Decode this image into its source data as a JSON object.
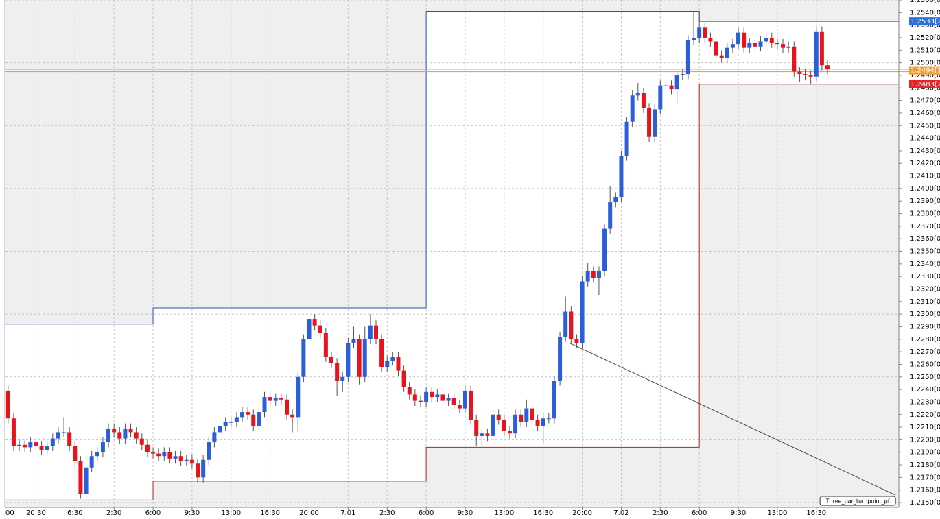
{
  "chart_data": {
    "type": "candlestick",
    "x": [
      2,
      3,
      4,
      5,
      6,
      7,
      8,
      9,
      10,
      11,
      12,
      13,
      14,
      15,
      16,
      17,
      18,
      19,
      20,
      21,
      22,
      23,
      24,
      25,
      26,
      27,
      28,
      29,
      30,
      31,
      32,
      33,
      34,
      35,
      36,
      37,
      38,
      39,
      40,
      41,
      42,
      43,
      44,
      45,
      46,
      47,
      48,
      49,
      50,
      51,
      52,
      53,
      54,
      55,
      56,
      57,
      58,
      59,
      60,
      61,
      62,
      63,
      64,
      65,
      66,
      67,
      68,
      69,
      70,
      71,
      72,
      73,
      74,
      75,
      76,
      77,
      78,
      79,
      80,
      81,
      82,
      83,
      84,
      85,
      86,
      87,
      88,
      89,
      90,
      91,
      92,
      93,
      94,
      95,
      96,
      97,
      98,
      99,
      100,
      101,
      102,
      103,
      104,
      105,
      106,
      107,
      108,
      109,
      110,
      111,
      112,
      113,
      114,
      115,
      116,
      117,
      118,
      119,
      120,
      121,
      122,
      123,
      124,
      125,
      126,
      127,
      128,
      129,
      130,
      131,
      132,
      133,
      134,
      135,
      136,
      137,
      138,
      139,
      140,
      141,
      142,
      143,
      144,
      145,
      146,
      147,
      148,
      149
    ],
    "open": [
      1.2239,
      1.2217,
      1.2195,
      1.2196,
      1.2194,
      1.2198,
      1.2195,
      1.2192,
      1.2195,
      1.2201,
      1.2206,
      1.2206,
      1.2195,
      1.2183,
      1.2157,
      1.2178,
      1.2187,
      1.219,
      1.2198,
      1.2209,
      1.2206,
      1.2201,
      1.2209,
      1.2206,
      1.2201,
      1.2196,
      1.219,
      1.2189,
      1.2187,
      1.219,
      1.2185,
      1.2187,
      1.2183,
      1.2184,
      1.2181,
      1.217,
      1.2184,
      1.2198,
      1.2206,
      1.2211,
      1.2214,
      1.2214,
      1.2218,
      1.2222,
      1.222,
      1.2211,
      1.2222,
      1.2234,
      1.2231,
      1.2233,
      1.2232,
      1.222,
      1.2218,
      1.225,
      1.228,
      1.2296,
      1.2291,
      1.2285,
      1.2266,
      1.2261,
      1.2247,
      1.225,
      1.2277,
      1.228,
      1.225,
      1.228,
      1.2291,
      1.228,
      1.2258,
      1.2263,
      1.2266,
      1.2255,
      1.2242,
      1.2236,
      1.2231,
      1.223,
      1.2238,
      1.2234,
      1.2236,
      1.2231,
      1.2233,
      1.2228,
      1.2225,
      1.2239,
      1.2216,
      1.2203,
      1.2205,
      1.2203,
      1.222,
      1.2216,
      1.2207,
      1.2205,
      1.222,
      1.2214,
      1.2225,
      1.2216,
      1.2211,
      1.2217,
      1.2217,
      1.2247,
      1.2282,
      1.2302,
      1.228,
      1.2277,
      1.2326,
      1.2334,
      1.2329,
      1.2334,
      1.2368,
      1.2389,
      1.2393,
      1.2426,
      1.2453,
      1.2474,
      1.2476,
      1.2464,
      1.2441,
      1.2463,
      1.2482,
      1.2482,
      1.2479,
      1.249,
      1.2491,
      1.2518,
      1.252,
      1.2528,
      1.252,
      1.2517,
      1.2506,
      1.2504,
      1.2512,
      1.2515,
      1.2524,
      1.2512,
      1.2516,
      1.2513,
      1.2517,
      1.252,
      1.2516,
      1.2515,
      1.2512,
      1.2513,
      1.2493,
      1.2491,
      1.249,
      1.2489,
      1.2525,
      1.2498
    ],
    "high": [
      1.2243,
      1.2221,
      1.22,
      1.22,
      1.2202,
      1.2202,
      1.2199,
      1.2199,
      1.2205,
      1.221,
      1.2218,
      1.221,
      1.2199,
      1.2187,
      1.2182,
      1.2191,
      1.2194,
      1.2202,
      1.2213,
      1.2213,
      1.221,
      1.2213,
      1.2213,
      1.221,
      1.2205,
      1.22,
      1.2194,
      1.2193,
      1.2194,
      1.2194,
      1.2191,
      1.2191,
      1.2188,
      1.2188,
      1.2185,
      1.2188,
      1.2202,
      1.221,
      1.2215,
      1.2218,
      1.2218,
      1.2222,
      1.2226,
      1.2226,
      1.2224,
      1.2226,
      1.2238,
      1.2238,
      1.2237,
      1.2237,
      1.2236,
      1.2224,
      1.2254,
      1.2284,
      1.2302,
      1.23,
      1.2295,
      1.2289,
      1.227,
      1.2265,
      1.2254,
      1.2281,
      1.229,
      1.2284,
      1.229,
      1.23,
      1.2295,
      1.2284,
      1.2267,
      1.227,
      1.227,
      1.2259,
      1.2246,
      1.224,
      1.2235,
      1.2242,
      1.2242,
      1.224,
      1.224,
      1.2237,
      1.2237,
      1.2232,
      1.2243,
      1.2243,
      1.222,
      1.2209,
      1.2209,
      1.2224,
      1.2224,
      1.222,
      1.2211,
      1.2224,
      1.2224,
      1.2232,
      1.2229,
      1.222,
      1.2221,
      1.2221,
      1.2251,
      1.2286,
      1.2314,
      1.2306,
      1.2284,
      1.233,
      1.2341,
      1.2338,
      1.2338,
      1.2372,
      1.2402,
      1.2397,
      1.243,
      1.2457,
      1.2478,
      1.2484,
      1.248,
      1.2468,
      1.2467,
      1.2486,
      1.2486,
      1.2486,
      1.2494,
      1.2495,
      1.2522,
      1.2541,
      1.2541,
      1.2532,
      1.2524,
      1.2521,
      1.251,
      1.2516,
      1.2519,
      1.2528,
      1.2528,
      1.252,
      1.252,
      1.2521,
      1.2524,
      1.2524,
      1.2519,
      1.2519,
      1.2517,
      1.2517,
      1.2497,
      1.2495,
      1.2494,
      1.2529,
      1.2529,
      1.2502
    ],
    "low": [
      1.2213,
      1.2191,
      1.2191,
      1.219,
      1.219,
      1.2191,
      1.2188,
      1.2188,
      1.2191,
      1.2197,
      1.2202,
      1.2191,
      1.2179,
      1.2153,
      1.2153,
      1.2174,
      1.2183,
      1.2186,
      1.2194,
      1.2202,
      1.2197,
      1.2197,
      1.2202,
      1.2197,
      1.2192,
      1.2186,
      1.2185,
      1.2183,
      1.2183,
      1.2181,
      1.2181,
      1.2179,
      1.2179,
      1.2177,
      1.2166,
      1.2166,
      1.218,
      1.2194,
      1.2202,
      1.2207,
      1.221,
      1.221,
      1.2214,
      1.2216,
      1.2207,
      1.2207,
      1.2218,
      1.2227,
      1.2227,
      1.2228,
      1.2216,
      1.2206,
      1.2206,
      1.2246,
      1.2276,
      1.2287,
      1.2281,
      1.2262,
      1.2257,
      1.2235,
      1.2238,
      1.2246,
      1.2273,
      1.2244,
      1.2246,
      1.2276,
      1.2276,
      1.2254,
      1.2254,
      1.2259,
      1.2251,
      1.2238,
      1.2232,
      1.2227,
      1.2226,
      1.2226,
      1.223,
      1.223,
      1.2227,
      1.2227,
      1.2224,
      1.2221,
      1.2221,
      1.2212,
      1.2195,
      1.2195,
      1.2199,
      1.2199,
      1.2212,
      1.2203,
      1.2201,
      1.2201,
      1.221,
      1.221,
      1.2212,
      1.2207,
      1.2197,
      1.2213,
      1.2213,
      1.2243,
      1.2278,
      1.2276,
      1.2273,
      1.2273,
      1.2322,
      1.2325,
      1.2315,
      1.233,
      1.2364,
      1.2385,
      1.2389,
      1.2422,
      1.2449,
      1.247,
      1.246,
      1.2437,
      1.2437,
      1.2459,
      1.2478,
      1.2475,
      1.2468,
      1.2486,
      1.2487,
      1.2514,
      1.2516,
      1.2516,
      1.2513,
      1.2502,
      1.25,
      1.25,
      1.2508,
      1.2511,
      1.2508,
      1.2508,
      1.2509,
      1.2509,
      1.2513,
      1.2512,
      1.2511,
      1.2508,
      1.2508,
      1.2489,
      1.2485,
      1.2486,
      1.2483,
      1.2485,
      1.2494,
      1.2491
    ],
    "close": [
      1.2217,
      1.2195,
      1.2196,
      1.2194,
      1.2198,
      1.2195,
      1.2192,
      1.2195,
      1.2201,
      1.2206,
      1.2206,
      1.2195,
      1.2183,
      1.2157,
      1.2178,
      1.2187,
      1.219,
      1.2198,
      1.2209,
      1.2206,
      1.2201,
      1.2209,
      1.2206,
      1.2201,
      1.2196,
      1.219,
      1.2189,
      1.2187,
      1.219,
      1.2185,
      1.2187,
      1.2183,
      1.2184,
      1.2181,
      1.217,
      1.2184,
      1.2198,
      1.2206,
      1.2211,
      1.2214,
      1.2214,
      1.2218,
      1.2222,
      1.222,
      1.2211,
      1.2222,
      1.2234,
      1.2231,
      1.2233,
      1.2232,
      1.222,
      1.2218,
      1.225,
      1.228,
      1.2296,
      1.2291,
      1.2285,
      1.2266,
      1.2261,
      1.2247,
      1.225,
      1.2277,
      1.228,
      1.225,
      1.228,
      1.2291,
      1.228,
      1.2258,
      1.2263,
      1.2266,
      1.2255,
      1.2242,
      1.2236,
      1.2231,
      1.223,
      1.2238,
      1.2234,
      1.2236,
      1.2231,
      1.2233,
      1.2228,
      1.2225,
      1.2239,
      1.2216,
      1.2203,
      1.2205,
      1.2203,
      1.222,
      1.2216,
      1.2207,
      1.2205,
      1.222,
      1.2214,
      1.2225,
      1.2216,
      1.2211,
      1.2217,
      1.2217,
      1.2247,
      1.2282,
      1.2302,
      1.228,
      1.2277,
      1.2326,
      1.2334,
      1.2329,
      1.2334,
      1.2368,
      1.2389,
      1.2393,
      1.2426,
      1.2453,
      1.2474,
      1.2476,
      1.2464,
      1.2441,
      1.2463,
      1.2482,
      1.2482,
      1.2479,
      1.249,
      1.2491,
      1.2518,
      1.252,
      1.2528,
      1.252,
      1.2517,
      1.2506,
      1.2504,
      1.2512,
      1.2515,
      1.2524,
      1.2512,
      1.2516,
      1.2513,
      1.2517,
      1.252,
      1.2516,
      1.2515,
      1.2512,
      1.2513,
      1.2493,
      1.2491,
      1.249,
      1.2489,
      1.2525,
      1.2498,
      1.2495
    ],
    "up_color": "#2b5fd9",
    "down_color": "#e8141c",
    "xlim": [
      1.53,
      161.8
    ],
    "xticks": [
      {
        "value": 0,
        "label": "00"
      },
      {
        "value": 7,
        "label": "20:30"
      },
      {
        "value": 14,
        "label": "6:30"
      },
      {
        "value": 21,
        "label": "2:30"
      },
      {
        "value": 28,
        "label": "6:00"
      },
      {
        "value": 35,
        "label": "9:30"
      },
      {
        "value": 42,
        "label": "13:00"
      },
      {
        "value": 49,
        "label": "16:30"
      },
      {
        "value": 56,
        "label": "20:00"
      },
      {
        "value": 63,
        "label": "7.01"
      },
      {
        "value": 70,
        "label": "2:30"
      },
      {
        "value": 77,
        "label": "6:00"
      },
      {
        "value": 84,
        "label": "9:30"
      },
      {
        "value": 91,
        "label": "13:00"
      },
      {
        "value": 98,
        "label": "16:30"
      },
      {
        "value": 105,
        "label": "20:00"
      },
      {
        "value": 112,
        "label": "7.02"
      },
      {
        "value": 119,
        "label": "2:30"
      },
      {
        "value": 126,
        "label": "6:00"
      },
      {
        "value": 133,
        "label": "9:30"
      },
      {
        "value": 140,
        "label": "13:00"
      },
      {
        "value": 147,
        "label": "16:30"
      }
    ],
    "ylim": [
      1.21462,
      1.255
    ],
    "yticks": [
      {
        "value": 1.215,
        "label": "1.2150[0"
      },
      {
        "value": 1.216,
        "label": "1.2160[0"
      },
      {
        "value": 1.217,
        "label": "1.2170[0"
      },
      {
        "value": 1.218,
        "label": "1.2180[0"
      },
      {
        "value": 1.219,
        "label": "1.2190[0"
      },
      {
        "value": 1.22,
        "label": "1.2200[0"
      },
      {
        "value": 1.221,
        "label": "1.2210[0"
      },
      {
        "value": 1.222,
        "label": "1.2220[0"
      },
      {
        "value": 1.223,
        "label": "1.2230[0"
      },
      {
        "value": 1.224,
        "label": "1.2240[0"
      },
      {
        "value": 1.225,
        "label": "1.2250[0"
      },
      {
        "value": 1.226,
        "label": "1.2260[0"
      },
      {
        "value": 1.227,
        "label": "1.2270[0"
      },
      {
        "value": 1.228,
        "label": "1.2280[0"
      },
      {
        "value": 1.229,
        "label": "1.2290[0"
      },
      {
        "value": 1.23,
        "label": "1.2300[0"
      },
      {
        "value": 1.231,
        "label": "1.2310[0"
      },
      {
        "value": 1.232,
        "label": "1.2320[0"
      },
      {
        "value": 1.233,
        "label": "1.2330[0"
      },
      {
        "value": 1.234,
        "label": "1.2340[0"
      },
      {
        "value": 1.235,
        "label": "1.2350[0"
      },
      {
        "value": 1.236,
        "label": "1.2360[0"
      },
      {
        "value": 1.237,
        "label": "1.2370[0"
      },
      {
        "value": 1.238,
        "label": "1.2380[0"
      },
      {
        "value": 1.239,
        "label": "1.2390[0"
      },
      {
        "value": 1.24,
        "label": "1.2400[0"
      },
      {
        "value": 1.241,
        "label": "1.2410[0"
      },
      {
        "value": 1.242,
        "label": "1.2420[0"
      },
      {
        "value": 1.243,
        "label": "1.2430[0"
      },
      {
        "value": 1.244,
        "label": "1.2440[0"
      },
      {
        "value": 1.245,
        "label": "1.2450[0"
      },
      {
        "value": 1.246,
        "label": "1.2460[0"
      },
      {
        "value": 1.247,
        "label": "1.2470[0"
      },
      {
        "value": 1.248,
        "label": "1.2480[0"
      },
      {
        "value": 1.249,
        "label": "1.2490[0"
      },
      {
        "value": 1.25,
        "label": "1.2500[0"
      },
      {
        "value": 1.251,
        "label": "1.2510[0"
      },
      {
        "value": 1.252,
        "label": "1.2520[0"
      },
      {
        "value": 1.253,
        "label": "1.2530[0"
      },
      {
        "value": 1.254,
        "label": "1.2540[0"
      },
      {
        "value": 1.255,
        "label": "1.2550[0"
      }
    ],
    "ygrid": [
      1.215,
      1.22,
      1.225,
      1.23,
      1.235,
      1.24,
      1.245,
      1.25,
      1.255
    ],
    "grid": true,
    "channel": {
      "breaks": [
        28,
        77,
        126
      ],
      "upper": [
        1.2292,
        1.2305,
        1.2541,
        1.2533
      ],
      "lower": [
        1.2152,
        1.2167,
        1.2194,
        1.2483
      ],
      "upper_color": "#2a4fb0",
      "lower_color": "#a82828"
    },
    "hlines": [
      1.2495,
      1.2493
    ],
    "hline_color": "#f4a040",
    "price_tags": [
      {
        "value": 1.2533,
        "label": "1.2533[2",
        "color": "#2f6fdc"
      },
      {
        "value": 1.2494,
        "label": "1.2494[1",
        "color": "#f39a30"
      },
      {
        "value": 1.2483,
        "label": "1.2483[2",
        "color": "#e2262a"
      }
    ],
    "trendline": {
      "name": "Three_bar_turnpoint_pf",
      "x": [
        102.7,
        161.2
      ],
      "y": [
        1.2277,
        1.2156
      ],
      "color": "#444444"
    }
  }
}
